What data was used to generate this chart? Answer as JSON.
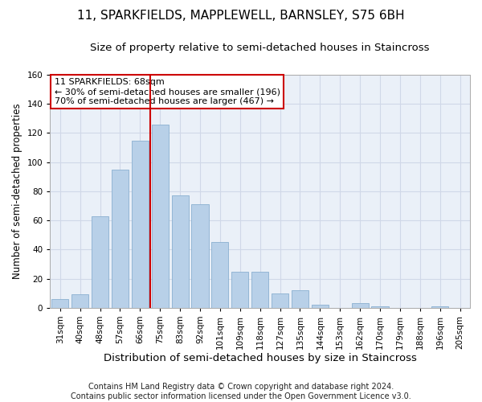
{
  "title": "11, SPARKFIELDS, MAPPLEWELL, BARNSLEY, S75 6BH",
  "subtitle": "Size of property relative to semi-detached houses in Staincross",
  "xlabel": "Distribution of semi-detached houses by size in Staincross",
  "ylabel": "Number of semi-detached properties",
  "categories": [
    "31sqm",
    "40sqm",
    "48sqm",
    "57sqm",
    "66sqm",
    "75sqm",
    "83sqm",
    "92sqm",
    "101sqm",
    "109sqm",
    "118sqm",
    "127sqm",
    "135sqm",
    "144sqm",
    "153sqm",
    "162sqm",
    "170sqm",
    "179sqm",
    "188sqm",
    "196sqm",
    "205sqm"
  ],
  "values": [
    6,
    9,
    63,
    95,
    115,
    126,
    77,
    71,
    45,
    25,
    25,
    10,
    12,
    2,
    0,
    3,
    1,
    0,
    0,
    1,
    0
  ],
  "bar_color": "#b8d0e8",
  "bar_edge_color": "#8ab0d0",
  "vline_x_index": 5,
  "vline_color": "#cc0000",
  "annotation_lines": [
    "11 SPARKFIELDS: 68sqm",
    "← 30% of semi-detached houses are smaller (196)",
    "70% of semi-detached houses are larger (467) →"
  ],
  "annotation_box_color": "#ffffff",
  "annotation_box_edge_color": "#cc0000",
  "ylim": [
    0,
    160
  ],
  "yticks": [
    0,
    20,
    40,
    60,
    80,
    100,
    120,
    140,
    160
  ],
  "grid_color": "#d0d8e8",
  "background_color": "#eaf0f8",
  "footer": "Contains HM Land Registry data © Crown copyright and database right 2024.\nContains public sector information licensed under the Open Government Licence v3.0.",
  "title_fontsize": 11,
  "subtitle_fontsize": 9.5,
  "xlabel_fontsize": 9.5,
  "ylabel_fontsize": 8.5,
  "tick_fontsize": 7.5,
  "annotation_fontsize": 8,
  "footer_fontsize": 7
}
